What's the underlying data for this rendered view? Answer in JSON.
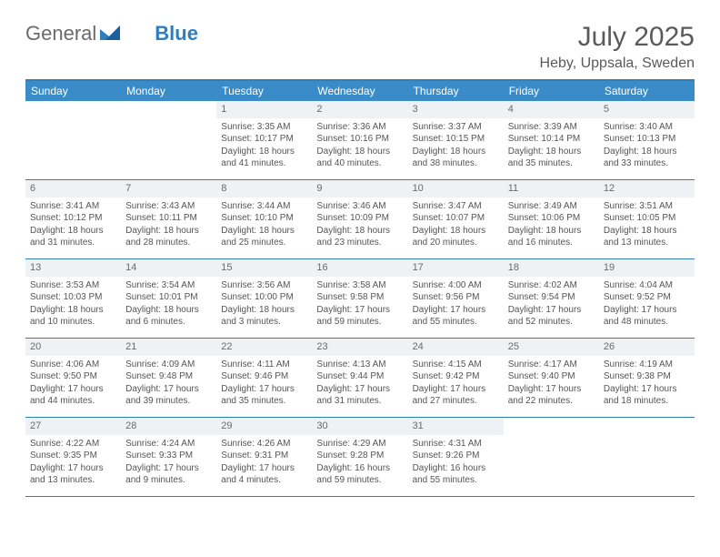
{
  "brand": {
    "part1": "General",
    "part2": "Blue"
  },
  "title": "July 2025",
  "location": "Heby, Uppsala, Sweden",
  "colors": {
    "accent": "#3a8cc9",
    "border": "#2f7fbf",
    "daybg": "#eef2f5",
    "text": "#555555"
  },
  "dayHeaders": [
    "Sunday",
    "Monday",
    "Tuesday",
    "Wednesday",
    "Thursday",
    "Friday",
    "Saturday"
  ],
  "weeks": [
    [
      {
        "day": "",
        "sunrise": "",
        "sunset": "",
        "daylight": ""
      },
      {
        "day": "",
        "sunrise": "",
        "sunset": "",
        "daylight": ""
      },
      {
        "day": "1",
        "sunrise": "Sunrise: 3:35 AM",
        "sunset": "Sunset: 10:17 PM",
        "daylight": "Daylight: 18 hours and 41 minutes."
      },
      {
        "day": "2",
        "sunrise": "Sunrise: 3:36 AM",
        "sunset": "Sunset: 10:16 PM",
        "daylight": "Daylight: 18 hours and 40 minutes."
      },
      {
        "day": "3",
        "sunrise": "Sunrise: 3:37 AM",
        "sunset": "Sunset: 10:15 PM",
        "daylight": "Daylight: 18 hours and 38 minutes."
      },
      {
        "day": "4",
        "sunrise": "Sunrise: 3:39 AM",
        "sunset": "Sunset: 10:14 PM",
        "daylight": "Daylight: 18 hours and 35 minutes."
      },
      {
        "day": "5",
        "sunrise": "Sunrise: 3:40 AM",
        "sunset": "Sunset: 10:13 PM",
        "daylight": "Daylight: 18 hours and 33 minutes."
      }
    ],
    [
      {
        "day": "6",
        "sunrise": "Sunrise: 3:41 AM",
        "sunset": "Sunset: 10:12 PM",
        "daylight": "Daylight: 18 hours and 31 minutes."
      },
      {
        "day": "7",
        "sunrise": "Sunrise: 3:43 AM",
        "sunset": "Sunset: 10:11 PM",
        "daylight": "Daylight: 18 hours and 28 minutes."
      },
      {
        "day": "8",
        "sunrise": "Sunrise: 3:44 AM",
        "sunset": "Sunset: 10:10 PM",
        "daylight": "Daylight: 18 hours and 25 minutes."
      },
      {
        "day": "9",
        "sunrise": "Sunrise: 3:46 AM",
        "sunset": "Sunset: 10:09 PM",
        "daylight": "Daylight: 18 hours and 23 minutes."
      },
      {
        "day": "10",
        "sunrise": "Sunrise: 3:47 AM",
        "sunset": "Sunset: 10:07 PM",
        "daylight": "Daylight: 18 hours and 20 minutes."
      },
      {
        "day": "11",
        "sunrise": "Sunrise: 3:49 AM",
        "sunset": "Sunset: 10:06 PM",
        "daylight": "Daylight: 18 hours and 16 minutes."
      },
      {
        "day": "12",
        "sunrise": "Sunrise: 3:51 AM",
        "sunset": "Sunset: 10:05 PM",
        "daylight": "Daylight: 18 hours and 13 minutes."
      }
    ],
    [
      {
        "day": "13",
        "sunrise": "Sunrise: 3:53 AM",
        "sunset": "Sunset: 10:03 PM",
        "daylight": "Daylight: 18 hours and 10 minutes."
      },
      {
        "day": "14",
        "sunrise": "Sunrise: 3:54 AM",
        "sunset": "Sunset: 10:01 PM",
        "daylight": "Daylight: 18 hours and 6 minutes."
      },
      {
        "day": "15",
        "sunrise": "Sunrise: 3:56 AM",
        "sunset": "Sunset: 10:00 PM",
        "daylight": "Daylight: 18 hours and 3 minutes."
      },
      {
        "day": "16",
        "sunrise": "Sunrise: 3:58 AM",
        "sunset": "Sunset: 9:58 PM",
        "daylight": "Daylight: 17 hours and 59 minutes."
      },
      {
        "day": "17",
        "sunrise": "Sunrise: 4:00 AM",
        "sunset": "Sunset: 9:56 PM",
        "daylight": "Daylight: 17 hours and 55 minutes."
      },
      {
        "day": "18",
        "sunrise": "Sunrise: 4:02 AM",
        "sunset": "Sunset: 9:54 PM",
        "daylight": "Daylight: 17 hours and 52 minutes."
      },
      {
        "day": "19",
        "sunrise": "Sunrise: 4:04 AM",
        "sunset": "Sunset: 9:52 PM",
        "daylight": "Daylight: 17 hours and 48 minutes."
      }
    ],
    [
      {
        "day": "20",
        "sunrise": "Sunrise: 4:06 AM",
        "sunset": "Sunset: 9:50 PM",
        "daylight": "Daylight: 17 hours and 44 minutes."
      },
      {
        "day": "21",
        "sunrise": "Sunrise: 4:09 AM",
        "sunset": "Sunset: 9:48 PM",
        "daylight": "Daylight: 17 hours and 39 minutes."
      },
      {
        "day": "22",
        "sunrise": "Sunrise: 4:11 AM",
        "sunset": "Sunset: 9:46 PM",
        "daylight": "Daylight: 17 hours and 35 minutes."
      },
      {
        "day": "23",
        "sunrise": "Sunrise: 4:13 AM",
        "sunset": "Sunset: 9:44 PM",
        "daylight": "Daylight: 17 hours and 31 minutes."
      },
      {
        "day": "24",
        "sunrise": "Sunrise: 4:15 AM",
        "sunset": "Sunset: 9:42 PM",
        "daylight": "Daylight: 17 hours and 27 minutes."
      },
      {
        "day": "25",
        "sunrise": "Sunrise: 4:17 AM",
        "sunset": "Sunset: 9:40 PM",
        "daylight": "Daylight: 17 hours and 22 minutes."
      },
      {
        "day": "26",
        "sunrise": "Sunrise: 4:19 AM",
        "sunset": "Sunset: 9:38 PM",
        "daylight": "Daylight: 17 hours and 18 minutes."
      }
    ],
    [
      {
        "day": "27",
        "sunrise": "Sunrise: 4:22 AM",
        "sunset": "Sunset: 9:35 PM",
        "daylight": "Daylight: 17 hours and 13 minutes."
      },
      {
        "day": "28",
        "sunrise": "Sunrise: 4:24 AM",
        "sunset": "Sunset: 9:33 PM",
        "daylight": "Daylight: 17 hours and 9 minutes."
      },
      {
        "day": "29",
        "sunrise": "Sunrise: 4:26 AM",
        "sunset": "Sunset: 9:31 PM",
        "daylight": "Daylight: 17 hours and 4 minutes."
      },
      {
        "day": "30",
        "sunrise": "Sunrise: 4:29 AM",
        "sunset": "Sunset: 9:28 PM",
        "daylight": "Daylight: 16 hours and 59 minutes."
      },
      {
        "day": "31",
        "sunrise": "Sunrise: 4:31 AM",
        "sunset": "Sunset: 9:26 PM",
        "daylight": "Daylight: 16 hours and 55 minutes."
      },
      {
        "day": "",
        "sunrise": "",
        "sunset": "",
        "daylight": ""
      },
      {
        "day": "",
        "sunrise": "",
        "sunset": "",
        "daylight": ""
      }
    ]
  ]
}
